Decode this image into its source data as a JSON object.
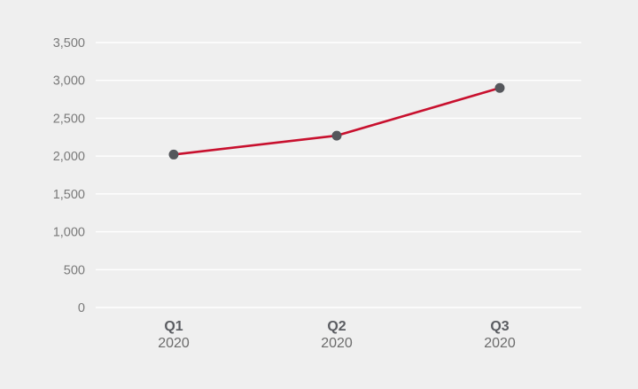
{
  "chart_data": {
    "type": "line",
    "categories": [
      "Q1",
      "Q2",
      "Q3"
    ],
    "category_sublabels": [
      "2020",
      "2020",
      "2020"
    ],
    "series": [
      {
        "values": [
          2020,
          2270,
          2900
        ]
      }
    ],
    "y_ticks": [
      "0",
      "500",
      "1,000",
      "1,500",
      "2,000",
      "2,500",
      "3,000",
      "3,500"
    ],
    "y_tick_values": [
      0,
      500,
      1000,
      1500,
      2000,
      2500,
      3000,
      3500
    ],
    "ylim": [
      0,
      3500
    ],
    "grid": true,
    "title": "",
    "xlabel": "",
    "ylabel": "",
    "colors": {
      "line": "#c8102e",
      "marker": "#55575c",
      "grid": "#ffffff",
      "background": "#efefef"
    }
  }
}
